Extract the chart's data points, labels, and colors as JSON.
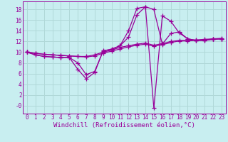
{
  "background_color": "#c8eef0",
  "grid_color": "#b0d8d8",
  "line_color": "#990099",
  "marker": "+",
  "markersize": 4,
  "linewidth": 0.9,
  "xlabel": "Windchill (Refroidissement éolien,°C)",
  "xlabel_fontsize": 6.5,
  "tick_fontsize": 5.5,
  "xlim": [
    -0.5,
    23.5
  ],
  "ylim": [
    -1.5,
    19.5
  ],
  "yticks": [
    0,
    2,
    4,
    6,
    8,
    10,
    12,
    14,
    16,
    18
  ],
  "ytick_labels": [
    "-0",
    "2",
    "4",
    "6",
    "8",
    "10",
    "12",
    "14",
    "16",
    "18"
  ],
  "xticks": [
    0,
    1,
    2,
    3,
    4,
    5,
    6,
    7,
    8,
    9,
    10,
    11,
    12,
    13,
    14,
    15,
    16,
    17,
    18,
    19,
    20,
    21,
    22,
    23
  ],
  "curves": [
    {
      "x": [
        0,
        1,
        2,
        3,
        4,
        5,
        6,
        7,
        8,
        9,
        10,
        11,
        12,
        13,
        14,
        15,
        16,
        17,
        18,
        19,
        20,
        21,
        22,
        23
      ],
      "y": [
        10,
        9.5,
        9.2,
        9.1,
        9.0,
        9.0,
        6.8,
        5.0,
        6.2,
        10.3,
        10.5,
        11.2,
        14.0,
        18.2,
        18.5,
        18.0,
        11.5,
        13.5,
        13.8,
        12.5,
        12.2,
        12.2,
        12.5,
        12.5
      ]
    },
    {
      "x": [
        0,
        1,
        2,
        3,
        4,
        5,
        6,
        7,
        8,
        9,
        10,
        11,
        12,
        13,
        14,
        15,
        16,
        17,
        18,
        19,
        20,
        21,
        22,
        23
      ],
      "y": [
        10,
        9.5,
        9.2,
        9.1,
        9.0,
        9.0,
        8.0,
        5.8,
        6.4,
        10.2,
        10.6,
        11.2,
        12.8,
        17.0,
        18.5,
        -0.5,
        16.8,
        15.8,
        13.6,
        12.5,
        12.2,
        12.2,
        12.4,
        12.5
      ]
    },
    {
      "x": [
        0,
        1,
        2,
        3,
        4,
        5,
        6,
        7,
        8,
        9,
        10,
        11,
        12,
        13,
        14,
        15,
        16,
        17,
        18,
        19,
        20,
        21,
        22,
        23
      ],
      "y": [
        10,
        9.8,
        9.6,
        9.5,
        9.4,
        9.3,
        9.2,
        9.1,
        9.3,
        9.8,
        10.2,
        10.6,
        11.0,
        11.3,
        11.5,
        11.1,
        11.4,
        11.8,
        12.1,
        12.1,
        12.2,
        12.3,
        12.4,
        12.5
      ]
    },
    {
      "x": [
        0,
        1,
        2,
        3,
        4,
        5,
        6,
        7,
        8,
        9,
        10,
        11,
        12,
        13,
        14,
        15,
        16,
        17,
        18,
        19,
        20,
        21,
        22,
        23
      ],
      "y": [
        10,
        9.8,
        9.6,
        9.5,
        9.4,
        9.3,
        9.2,
        9.2,
        9.5,
        10.0,
        10.4,
        10.9,
        11.2,
        11.5,
        11.7,
        11.3,
        11.6,
        12.0,
        12.2,
        12.2,
        12.3,
        12.4,
        12.5,
        12.6
      ]
    }
  ]
}
